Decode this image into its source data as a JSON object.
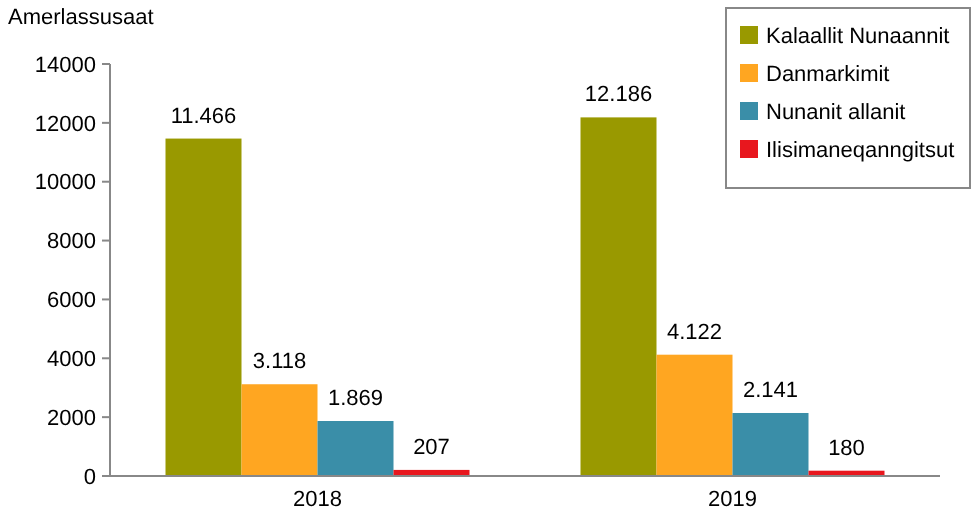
{
  "chart_data": {
    "type": "bar",
    "ylabel": "Amerlassusaat",
    "categories": [
      "2018",
      "2019"
    ],
    "series": [
      {
        "name": "Kalaallit Nunaannit",
        "color": "#999900",
        "values": [
          11466,
          12186
        ],
        "value_labels": [
          "11.466",
          "12.186"
        ]
      },
      {
        "name": "Danmarkimit",
        "color": "#ffa621",
        "values": [
          3118,
          4122
        ],
        "value_labels": [
          "3.118",
          "4.122"
        ]
      },
      {
        "name": "Nunanit allanit",
        "color": "#3a8ea8",
        "values": [
          1869,
          2141
        ],
        "value_labels": [
          "1.869",
          "2.141"
        ]
      },
      {
        "name": "Ilisimaneqanngitsut",
        "color": "#e8171e",
        "values": [
          207,
          180
        ],
        "value_labels": [
          "207",
          "180"
        ]
      }
    ],
    "ylim": [
      0,
      14000
    ],
    "yticks": [
      0,
      2000,
      4000,
      6000,
      8000,
      10000,
      12000,
      14000
    ],
    "grid": false,
    "legend": "top right"
  }
}
